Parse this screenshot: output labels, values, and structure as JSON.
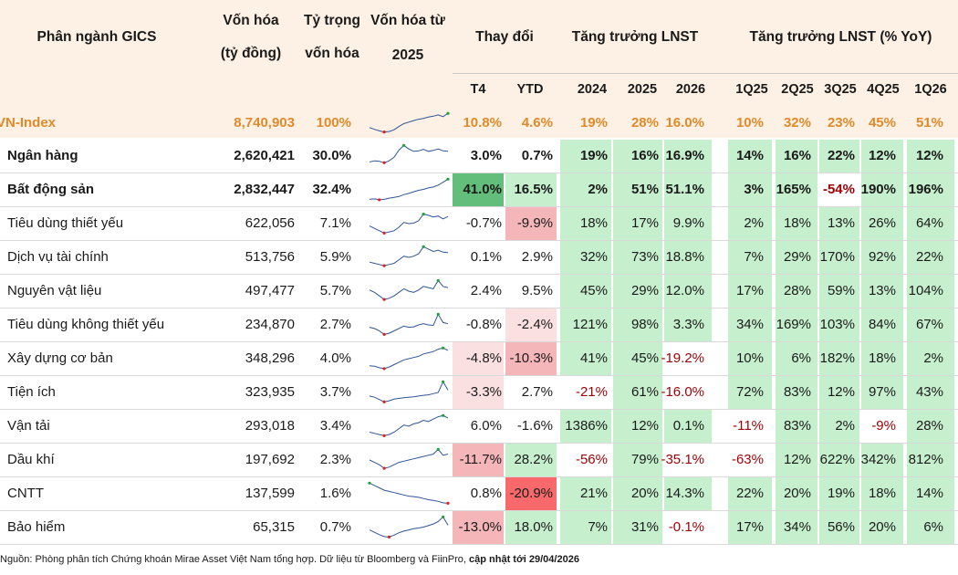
{
  "header": {
    "col_sector": "Phân ngành GICS",
    "col_cap_line1": "Vốn hóa",
    "col_cap_line2": "(tỷ đồng)",
    "col_weight_line1": "Tỷ trọng",
    "col_weight_line2": "vốn hóa",
    "col_spark_line1": "Vốn hóa từ",
    "col_spark_line2": "2025",
    "col_change": "Thay đổi",
    "col_growth": "Tăng trưởng LNST",
    "col_growth_yoy": "Tăng trưởng LNST (% YoY)",
    "sub_change": [
      "T4",
      "YTD"
    ],
    "sub_growth": [
      "2024",
      "2025",
      "2026"
    ],
    "sub_yoy": [
      "1Q25",
      "2Q25",
      "3Q25",
      "4Q25",
      "1Q26"
    ]
  },
  "vnindex": {
    "name": "VN-Index",
    "cap": "8,740,903",
    "weight": "100%",
    "spark": [
      0.3,
      0.22,
      0.15,
      0.1,
      0.12,
      0.2,
      0.35,
      0.48,
      0.55,
      0.62,
      0.68,
      0.72,
      0.78,
      0.82,
      0.88,
      0.8,
      0.95
    ],
    "change": [
      "10.8%",
      "4.6%"
    ],
    "growth": [
      "19%",
      "28%",
      "16.0%"
    ],
    "yoy": [
      "10%",
      "32%",
      "23%",
      "45%",
      "51%"
    ]
  },
  "rows": [
    {
      "name": "Ngân hàng",
      "bold": true,
      "cap": "2,620,421",
      "weight": "30.0%",
      "spark": [
        0.25,
        0.3,
        0.28,
        0.22,
        0.3,
        0.45,
        0.75,
        0.95,
        0.8,
        0.7,
        0.72,
        0.78,
        0.7,
        0.74,
        0.8,
        0.72,
        0.7
      ],
      "change": [
        "3.0%",
        "0.7%"
      ],
      "growth": [
        "19%",
        "16%",
        "16.9%"
      ],
      "yoy": [
        "14%",
        "16%",
        "22%",
        "12%",
        "12%"
      ]
    },
    {
      "name": "Bất động sản",
      "bold": true,
      "cap": "2,832,447",
      "weight": "32.4%",
      "spark": [
        0.1,
        0.12,
        0.08,
        0.1,
        0.15,
        0.18,
        0.22,
        0.3,
        0.35,
        0.42,
        0.48,
        0.52,
        0.58,
        0.62,
        0.7,
        0.82,
        0.95
      ],
      "change": [
        "41.0%",
        "16.5%"
      ],
      "growth": [
        "2%",
        "51%",
        "51.1%"
      ],
      "yoy": [
        "3%",
        "165%",
        "-54%",
        "190%",
        "196%"
      ]
    },
    {
      "name": "Tiêu dùng thiết yếu",
      "bold": false,
      "cap": "622,056",
      "weight": "7.1%",
      "spark": [
        0.4,
        0.3,
        0.2,
        0.1,
        0.15,
        0.2,
        0.35,
        0.55,
        0.5,
        0.52,
        0.62,
        0.9,
        0.85,
        0.78,
        0.82,
        0.7,
        0.8
      ],
      "change": [
        "-0.7%",
        "-9.9%"
      ],
      "growth": [
        "18%",
        "17%",
        "9.9%"
      ],
      "yoy": [
        "2%",
        "18%",
        "13%",
        "26%",
        "64%"
      ]
    },
    {
      "name": "Dịch vụ tài chính",
      "bold": false,
      "cap": "513,756",
      "weight": "5.9%",
      "spark": [
        0.3,
        0.25,
        0.2,
        0.15,
        0.2,
        0.25,
        0.4,
        0.55,
        0.5,
        0.55,
        0.65,
        0.95,
        0.85,
        0.75,
        0.8,
        0.72,
        0.7
      ],
      "change": [
        "0.1%",
        "2.9%"
      ],
      "growth": [
        "32%",
        "73%",
        "18.8%"
      ],
      "yoy": [
        "7%",
        "29%",
        "170%",
        "92%",
        "22%"
      ]
    },
    {
      "name": "Nguyên vật liệu",
      "bold": false,
      "cap": "497,477",
      "weight": "5.7%",
      "spark": [
        0.55,
        0.45,
        0.3,
        0.15,
        0.2,
        0.3,
        0.45,
        0.6,
        0.5,
        0.45,
        0.55,
        0.7,
        0.65,
        0.6,
        0.95,
        0.7,
        0.65
      ],
      "change": [
        "2.4%",
        "9.5%"
      ],
      "growth": [
        "45%",
        "29%",
        "12.0%"
      ],
      "yoy": [
        "17%",
        "28%",
        "59%",
        "13%",
        "104%"
      ]
    },
    {
      "name": "Tiêu dùng không thiết yếu",
      "bold": false,
      "cap": "234,870",
      "weight": "2.7%",
      "spark": [
        0.4,
        0.35,
        0.25,
        0.1,
        0.15,
        0.25,
        0.35,
        0.45,
        0.4,
        0.42,
        0.5,
        0.55,
        0.5,
        0.48,
        0.95,
        0.6,
        0.55
      ],
      "change": [
        "-0.8%",
        "-2.4%"
      ],
      "growth": [
        "121%",
        "98%",
        "3.3%"
      ],
      "yoy": [
        "34%",
        "169%",
        "103%",
        "84%",
        "67%"
      ]
    },
    {
      "name": "Xây dựng cơ bản",
      "bold": false,
      "cap": "348,296",
      "weight": "4.0%",
      "spark": [
        0.2,
        0.18,
        0.12,
        0.08,
        0.15,
        0.25,
        0.35,
        0.45,
        0.5,
        0.55,
        0.6,
        0.7,
        0.75,
        0.8,
        0.9,
        0.95,
        0.85
      ],
      "change": [
        "-4.8%",
        "-10.3%"
      ],
      "growth": [
        "41%",
        "45%",
        "-19.2%"
      ],
      "yoy": [
        "10%",
        "6%",
        "182%",
        "18%",
        "2%"
      ]
    },
    {
      "name": "Tiện ích",
      "bold": false,
      "cap": "323,935",
      "weight": "3.7%",
      "spark": [
        0.35,
        0.3,
        0.2,
        0.1,
        0.15,
        0.22,
        0.25,
        0.28,
        0.3,
        0.32,
        0.35,
        0.38,
        0.4,
        0.45,
        0.5,
        0.95,
        0.6
      ],
      "change": [
        "-3.3%",
        "2.7%"
      ],
      "growth": [
        "-21%",
        "61%",
        "-16.0%"
      ],
      "yoy": [
        "72%",
        "83%",
        "12%",
        "97%",
        "43%"
      ]
    },
    {
      "name": "Vận tải",
      "bold": false,
      "cap": "293,018",
      "weight": "3.4%",
      "spark": [
        0.25,
        0.2,
        0.15,
        0.1,
        0.15,
        0.25,
        0.4,
        0.55,
        0.5,
        0.6,
        0.65,
        0.75,
        0.7,
        0.8,
        0.9,
        0.95,
        0.85
      ],
      "change": [
        "6.0%",
        "-1.6%"
      ],
      "growth": [
        "1386%",
        "12%",
        "0.1%"
      ],
      "yoy": [
        "-11%",
        "83%",
        "2%",
        "-9%",
        "28%"
      ]
    },
    {
      "name": "Dầu khí",
      "bold": false,
      "cap": "197,692",
      "weight": "2.3%",
      "spark": [
        0.5,
        0.4,
        0.3,
        0.15,
        0.2,
        0.3,
        0.4,
        0.45,
        0.5,
        0.55,
        0.6,
        0.65,
        0.7,
        0.75,
        0.95,
        0.7,
        0.75
      ],
      "change": [
        "-11.7%",
        "28.2%"
      ],
      "growth": [
        "-56%",
        "79%",
        "-35.1%"
      ],
      "yoy": [
        "-63%",
        "12%",
        "622%",
        "342%",
        "812%"
      ]
    },
    {
      "name": "CNTT",
      "bold": false,
      "cap": "137,599",
      "weight": "1.6%",
      "spark": [
        0.95,
        0.85,
        0.75,
        0.65,
        0.6,
        0.55,
        0.5,
        0.45,
        0.4,
        0.38,
        0.35,
        0.3,
        0.25,
        0.22,
        0.18,
        0.12,
        0.1
      ],
      "change": [
        "0.8%",
        "-20.9%"
      ],
      "growth": [
        "21%",
        "20%",
        "14.3%"
      ],
      "yoy": [
        "22%",
        "20%",
        "19%",
        "18%",
        "14%"
      ]
    },
    {
      "name": "Bảo hiểm",
      "bold": false,
      "cap": "65,315",
      "weight": "0.7%",
      "spark": [
        0.4,
        0.3,
        0.2,
        0.12,
        0.1,
        0.18,
        0.28,
        0.35,
        0.4,
        0.45,
        0.48,
        0.52,
        0.58,
        0.65,
        0.75,
        0.95,
        0.6
      ],
      "change": [
        "-13.0%",
        "18.0%"
      ],
      "growth": [
        "7%",
        "31%",
        "-0.1%"
      ],
      "yoy": [
        "17%",
        "34%",
        "56%",
        "20%",
        "6%"
      ]
    }
  ],
  "footer": {
    "text": "Nguồn: Phòng phân tích Chứng khoán Mirae Asset Việt Nam tổng hợp. Dữ liệu từ Bloomberg và FiinPro, ",
    "bold": "cập nhật tới 29/04/2026"
  },
  "colors": {
    "header_bg": "#fdf0e4",
    "vnindex_text": "#e08a2a",
    "green_cell": "#c6efce",
    "negative_text": "#9c0006",
    "positive_strong": "#63be7b",
    "negative_strong": "#f8696b"
  }
}
